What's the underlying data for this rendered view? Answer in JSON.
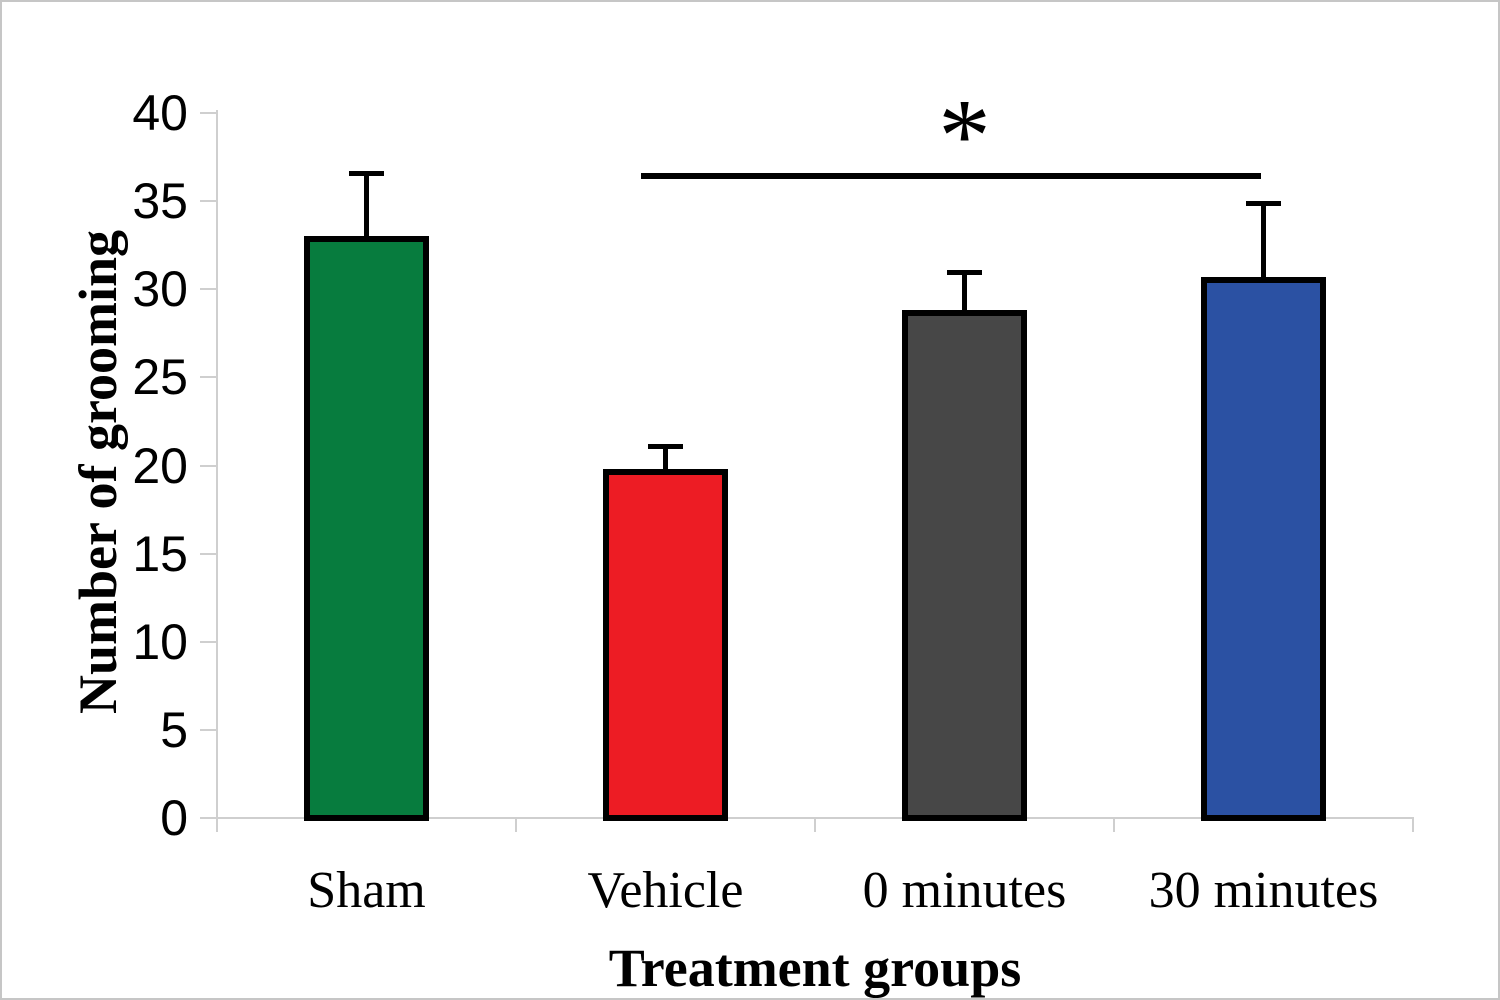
{
  "chart_data": {
    "type": "bar",
    "title": "",
    "categories": [
      "Sham",
      "Vehicle",
      "0 minutes",
      "30 minutes"
    ],
    "values": [
      33.0,
      19.8,
      28.8,
      30.7
    ],
    "errors_plus": [
      3.7,
      1.4,
      2.3,
      4.3
    ],
    "bar_colors": [
      "#077C3E",
      "#ED1C24",
      "#474747",
      "#2B51A3"
    ],
    "bar_border_color": "#000000",
    "xlabel": "Treatment groups",
    "ylabel": "Number of grooming",
    "ylim": [
      0,
      40
    ],
    "yticks": [
      0,
      5,
      10,
      15,
      20,
      25,
      30,
      35,
      40
    ],
    "grid": false,
    "legend": null,
    "significance": {
      "label": "*",
      "from_category": "Vehicle",
      "to_category": "30 minutes",
      "line_y_value": 36.6
    }
  },
  "colors": {
    "axis": "#cfcfcf",
    "text": "#000000",
    "background": "#ffffff"
  }
}
